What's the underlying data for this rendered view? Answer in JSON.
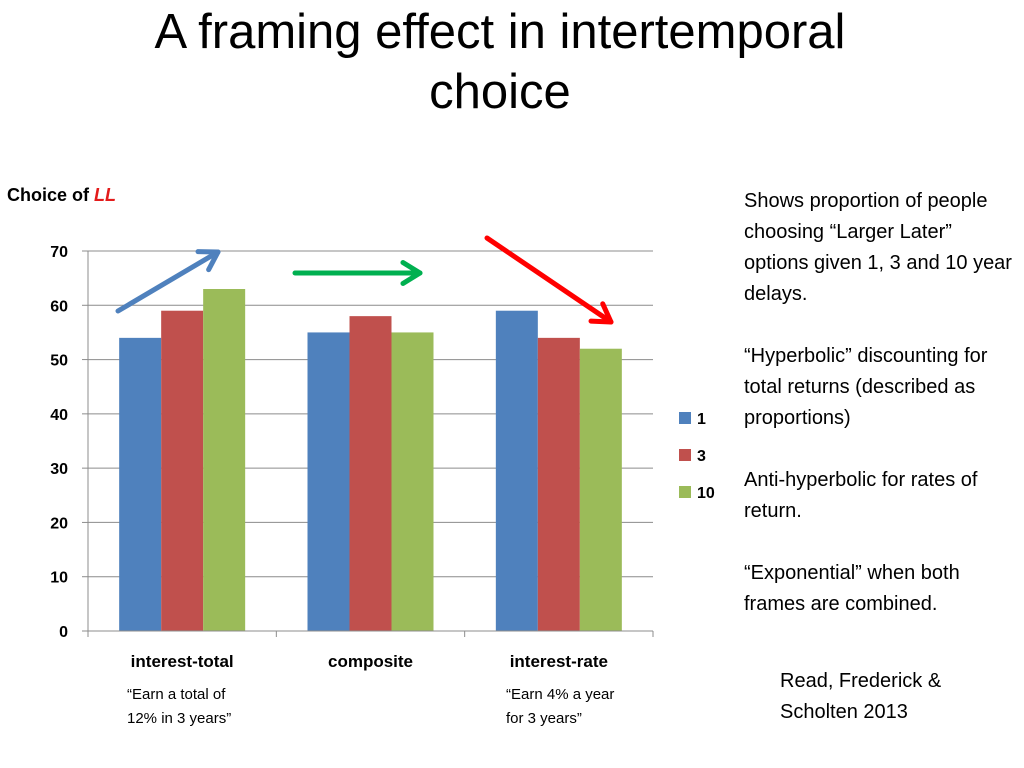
{
  "slide": {
    "title_line1": "A framing effect in intertemporal",
    "title_line2": "choice",
    "ylabel_prefix": "Choice of ",
    "ylabel_emph": "LL",
    "notes": [
      "Shows proportion of people choosing “Larger Later” options given 1, 3 and 10 year delays.",
      "“Hyperbolic” discounting for total returns (described as proportions)",
      "Anti-hyperbolic for rates of return.",
      "“Exponential” when both frames are combined."
    ],
    "citation": "Read, Frederick & Scholten 2013",
    "category_notes": [
      "“Earn a total of 12% in 3 years”",
      "“Earn 4% a year for 3 years”"
    ]
  },
  "chart_data": {
    "type": "bar",
    "categories": [
      "interest-total",
      "composite",
      "interest-rate"
    ],
    "series": [
      {
        "name": "1",
        "values": [
          54,
          55,
          59
        ],
        "color": "#4f81bd"
      },
      {
        "name": "3",
        "values": [
          59,
          58,
          54
        ],
        "color": "#c0504d"
      },
      {
        "name": "10",
        "values": [
          63,
          55,
          52
        ],
        "color": "#9bbb59"
      }
    ],
    "ylim": [
      0,
      70
    ],
    "yticks": [
      0,
      10,
      20,
      30,
      40,
      50,
      60,
      70
    ],
    "grid": true,
    "legend": "right",
    "arrows": [
      {
        "category": "interest-total",
        "direction": "up",
        "color": "#4f81bd"
      },
      {
        "category": "composite",
        "direction": "flat",
        "color": "#00b050"
      },
      {
        "category": "interest-rate",
        "direction": "down",
        "color": "#ff0000"
      }
    ]
  }
}
